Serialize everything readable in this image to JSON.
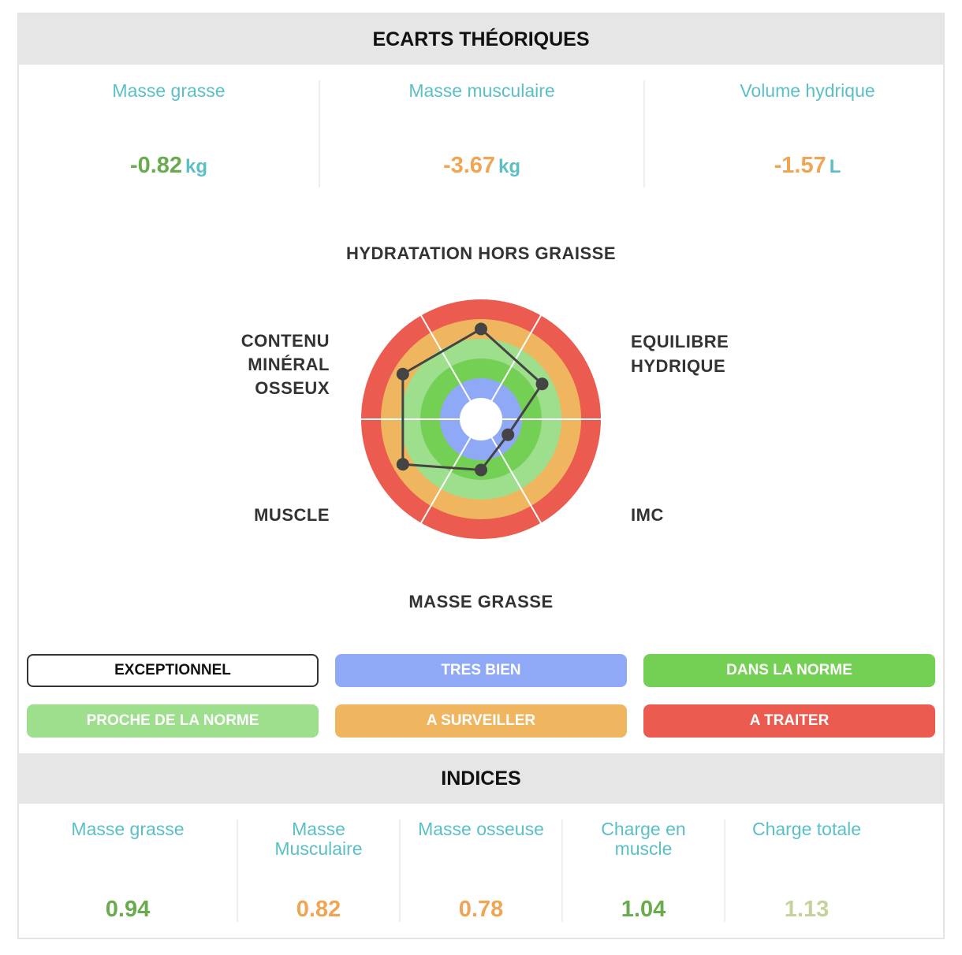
{
  "ecarts": {
    "title": "ECARTS THÉORIQUES",
    "metrics": [
      {
        "label": "Masse grasse",
        "value": "-0.82",
        "unit": "kg",
        "color": "#6aab4d"
      },
      {
        "label": "Masse musculaire",
        "value": "-3.67",
        "unit": "kg",
        "color": "#f0a552"
      },
      {
        "label": "Volume hydrique",
        "value": "-1.57",
        "unit": "L",
        "color": "#f0a552"
      }
    ]
  },
  "radar": {
    "axes": {
      "top": "HYDRATATION HORS GRAISSE",
      "top_right_line1": "EQUILIBRE",
      "top_right_line2": "HYDRIQUE",
      "bottom_right": "IMC",
      "bottom": "MASSE GRASSE",
      "bottom_left": "MUSCLE",
      "top_left_line1": "CONTENU",
      "top_left_line2": "MINÉRAL",
      "top_left_line3": "OSSEUX"
    },
    "levels_outer_to_inner": [
      "A TRAITER",
      "A SURVEILLER",
      "PROCHE DE LA NORME",
      "DANS LA NORME",
      "TRES BIEN",
      "EXCEPTIONNEL"
    ],
    "level_colors": [
      "#eb5b4f",
      "#f0b65f",
      "#9ddf8d",
      "#74cf55",
      "#8fa9f7",
      "#ffffff"
    ],
    "points": [
      {
        "axis": "HYDRATATION HORS GRAISSE",
        "level": "A SURVEILLER"
      },
      {
        "axis": "EQUILIBRE HYDRIQUE",
        "level": "PROCHE DE LA NORME"
      },
      {
        "axis": "IMC",
        "level": "TRES BIEN"
      },
      {
        "axis": "MASSE GRASSE",
        "level": "DANS LA NORME"
      },
      {
        "axis": "MUSCLE",
        "level": "A SURVEILLER"
      },
      {
        "axis": "CONTENU MINÉRAL OSSEUX",
        "level": "A SURVEILLER"
      }
    ]
  },
  "legend": {
    "exceptionnel": "EXCEPTIONNEL",
    "tres_bien": "TRES BIEN",
    "dans_la_norme": "DANS LA NORME",
    "proche_de_la_norme": "PROCHE DE LA NORME",
    "a_surveiller": "A SURVEILLER",
    "a_traiter": "A TRAITER",
    "colors": {
      "tres_bien": "#8fa9f7",
      "dans_la_norme": "#74cf55",
      "proche_de_la_norme": "#9ddf8d",
      "a_surveiller": "#f0b65f",
      "a_traiter": "#eb5b4f"
    }
  },
  "indices": {
    "title": "INDICES",
    "items": [
      {
        "label": "Masse grasse",
        "value": "0.94",
        "color": "#6aab4d"
      },
      {
        "label": "Masse Musculaire",
        "value": "0.82",
        "color": "#f0a552"
      },
      {
        "label": "Masse osseuse",
        "value": "0.78",
        "color": "#f0a552"
      },
      {
        "label": "Charge en muscle",
        "value": "1.04",
        "color": "#6aab4d"
      },
      {
        "label": "Charge totale",
        "value": "1.13",
        "color": "#c3d39a"
      }
    ]
  }
}
